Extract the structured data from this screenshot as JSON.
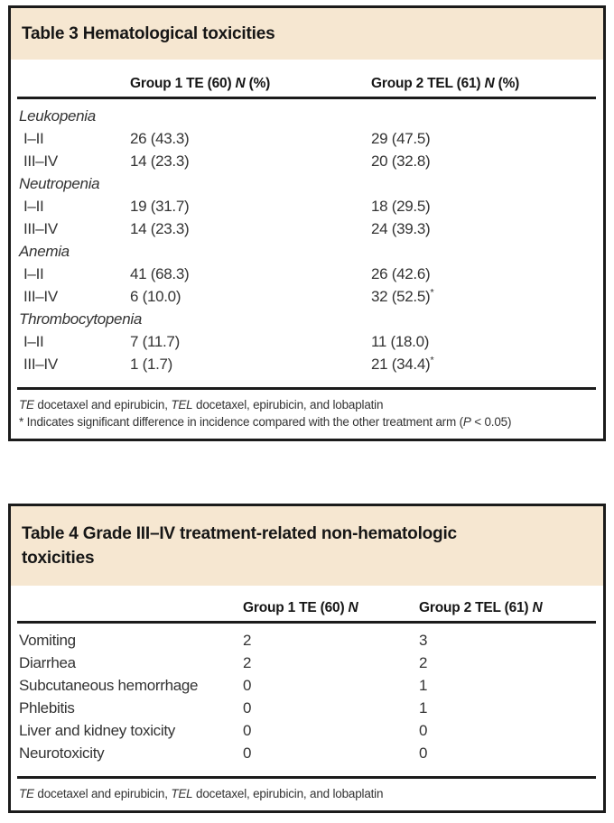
{
  "colors": {
    "banner_background": "#f6e7d1",
    "border": "#1b1b1b",
    "page_background": "#ffffff"
  },
  "table3": {
    "title": "Table 3 Hematological toxicities",
    "columns": [
      {
        "pre": "Group 1 TE (60)",
        "n": "N",
        "post": "(%)"
      },
      {
        "pre": "Group 2 TEL (61)",
        "n": "N",
        "post": "(%)"
      }
    ],
    "rows": [
      {
        "type": "section",
        "label": "Leukopenia",
        "group1": "",
        "group2": ""
      },
      {
        "type": "data",
        "label": "I–II",
        "group1": "26 (43.3)",
        "group2": "29 (47.5)"
      },
      {
        "type": "data",
        "label": "III–IV",
        "group1": "14 (23.3)",
        "group2": "20 (32.8)"
      },
      {
        "type": "section",
        "label": "Neutropenia",
        "group1": "",
        "group2": ""
      },
      {
        "type": "data",
        "label": "I–II",
        "group1": "19 (31.7)",
        "group2": "18 (29.5)"
      },
      {
        "type": "data",
        "label": "III–IV",
        "group1": "14 (23.3)",
        "group2": "24 (39.3)"
      },
      {
        "type": "section",
        "label": "Anemia",
        "group1": "",
        "group2": ""
      },
      {
        "type": "data",
        "label": "I–II",
        "group1": "41 (68.3)",
        "group2": "26 (42.6)"
      },
      {
        "type": "data",
        "label": "III–IV",
        "group1": "6 (10.0)",
        "group2": "32 (52.5)",
        "group2_star": "*"
      },
      {
        "type": "section",
        "label": "Thrombocytopenia",
        "group1": "",
        "group2": ""
      },
      {
        "type": "data",
        "label": "I–II",
        "group1": "7 (11.7)",
        "group2": "11 (18.0)"
      },
      {
        "type": "data",
        "label": "III–IV",
        "group1": "1 (1.7)",
        "group2": "21 (34.4)",
        "group2_star": "*"
      }
    ],
    "footnotes": {
      "abbrev": {
        "te": "TE",
        "te_text": " docetaxel and epirubicin, ",
        "tel": "TEL",
        "tel_text": " docetaxel, epirubicin, and lobaplatin"
      },
      "significance": {
        "pre": "* Indicates significant difference in incidence compared with the other treatment arm (",
        "p": "P",
        "post": " < 0.05)"
      }
    }
  },
  "table4": {
    "title_lines": [
      "Table 4 Grade III–IV treatment-related non-hematologic",
      "toxicities"
    ],
    "columns": [
      {
        "pre": "Group 1 TE (60)",
        "n": "N",
        "post": ""
      },
      {
        "pre": "Group 2 TEL (61)",
        "n": "N",
        "post": ""
      }
    ],
    "rows": [
      {
        "label": "Vomiting",
        "group1": "2",
        "group2": "3"
      },
      {
        "label": "Diarrhea",
        "group1": "2",
        "group2": "2"
      },
      {
        "label": "Subcutaneous hemorrhage",
        "group1": "0",
        "group2": "1"
      },
      {
        "label": "Phlebitis",
        "group1": "0",
        "group2": "1"
      },
      {
        "label": "Liver and kidney toxicity",
        "group1": "0",
        "group2": "0"
      },
      {
        "label": "Neurotoxicity",
        "group1": "0",
        "group2": "0"
      }
    ],
    "footnotes": {
      "abbrev": {
        "te": "TE",
        "te_text": " docetaxel and epirubicin, ",
        "tel": "TEL",
        "tel_text": " docetaxel, epirubicin, and lobaplatin"
      }
    }
  }
}
